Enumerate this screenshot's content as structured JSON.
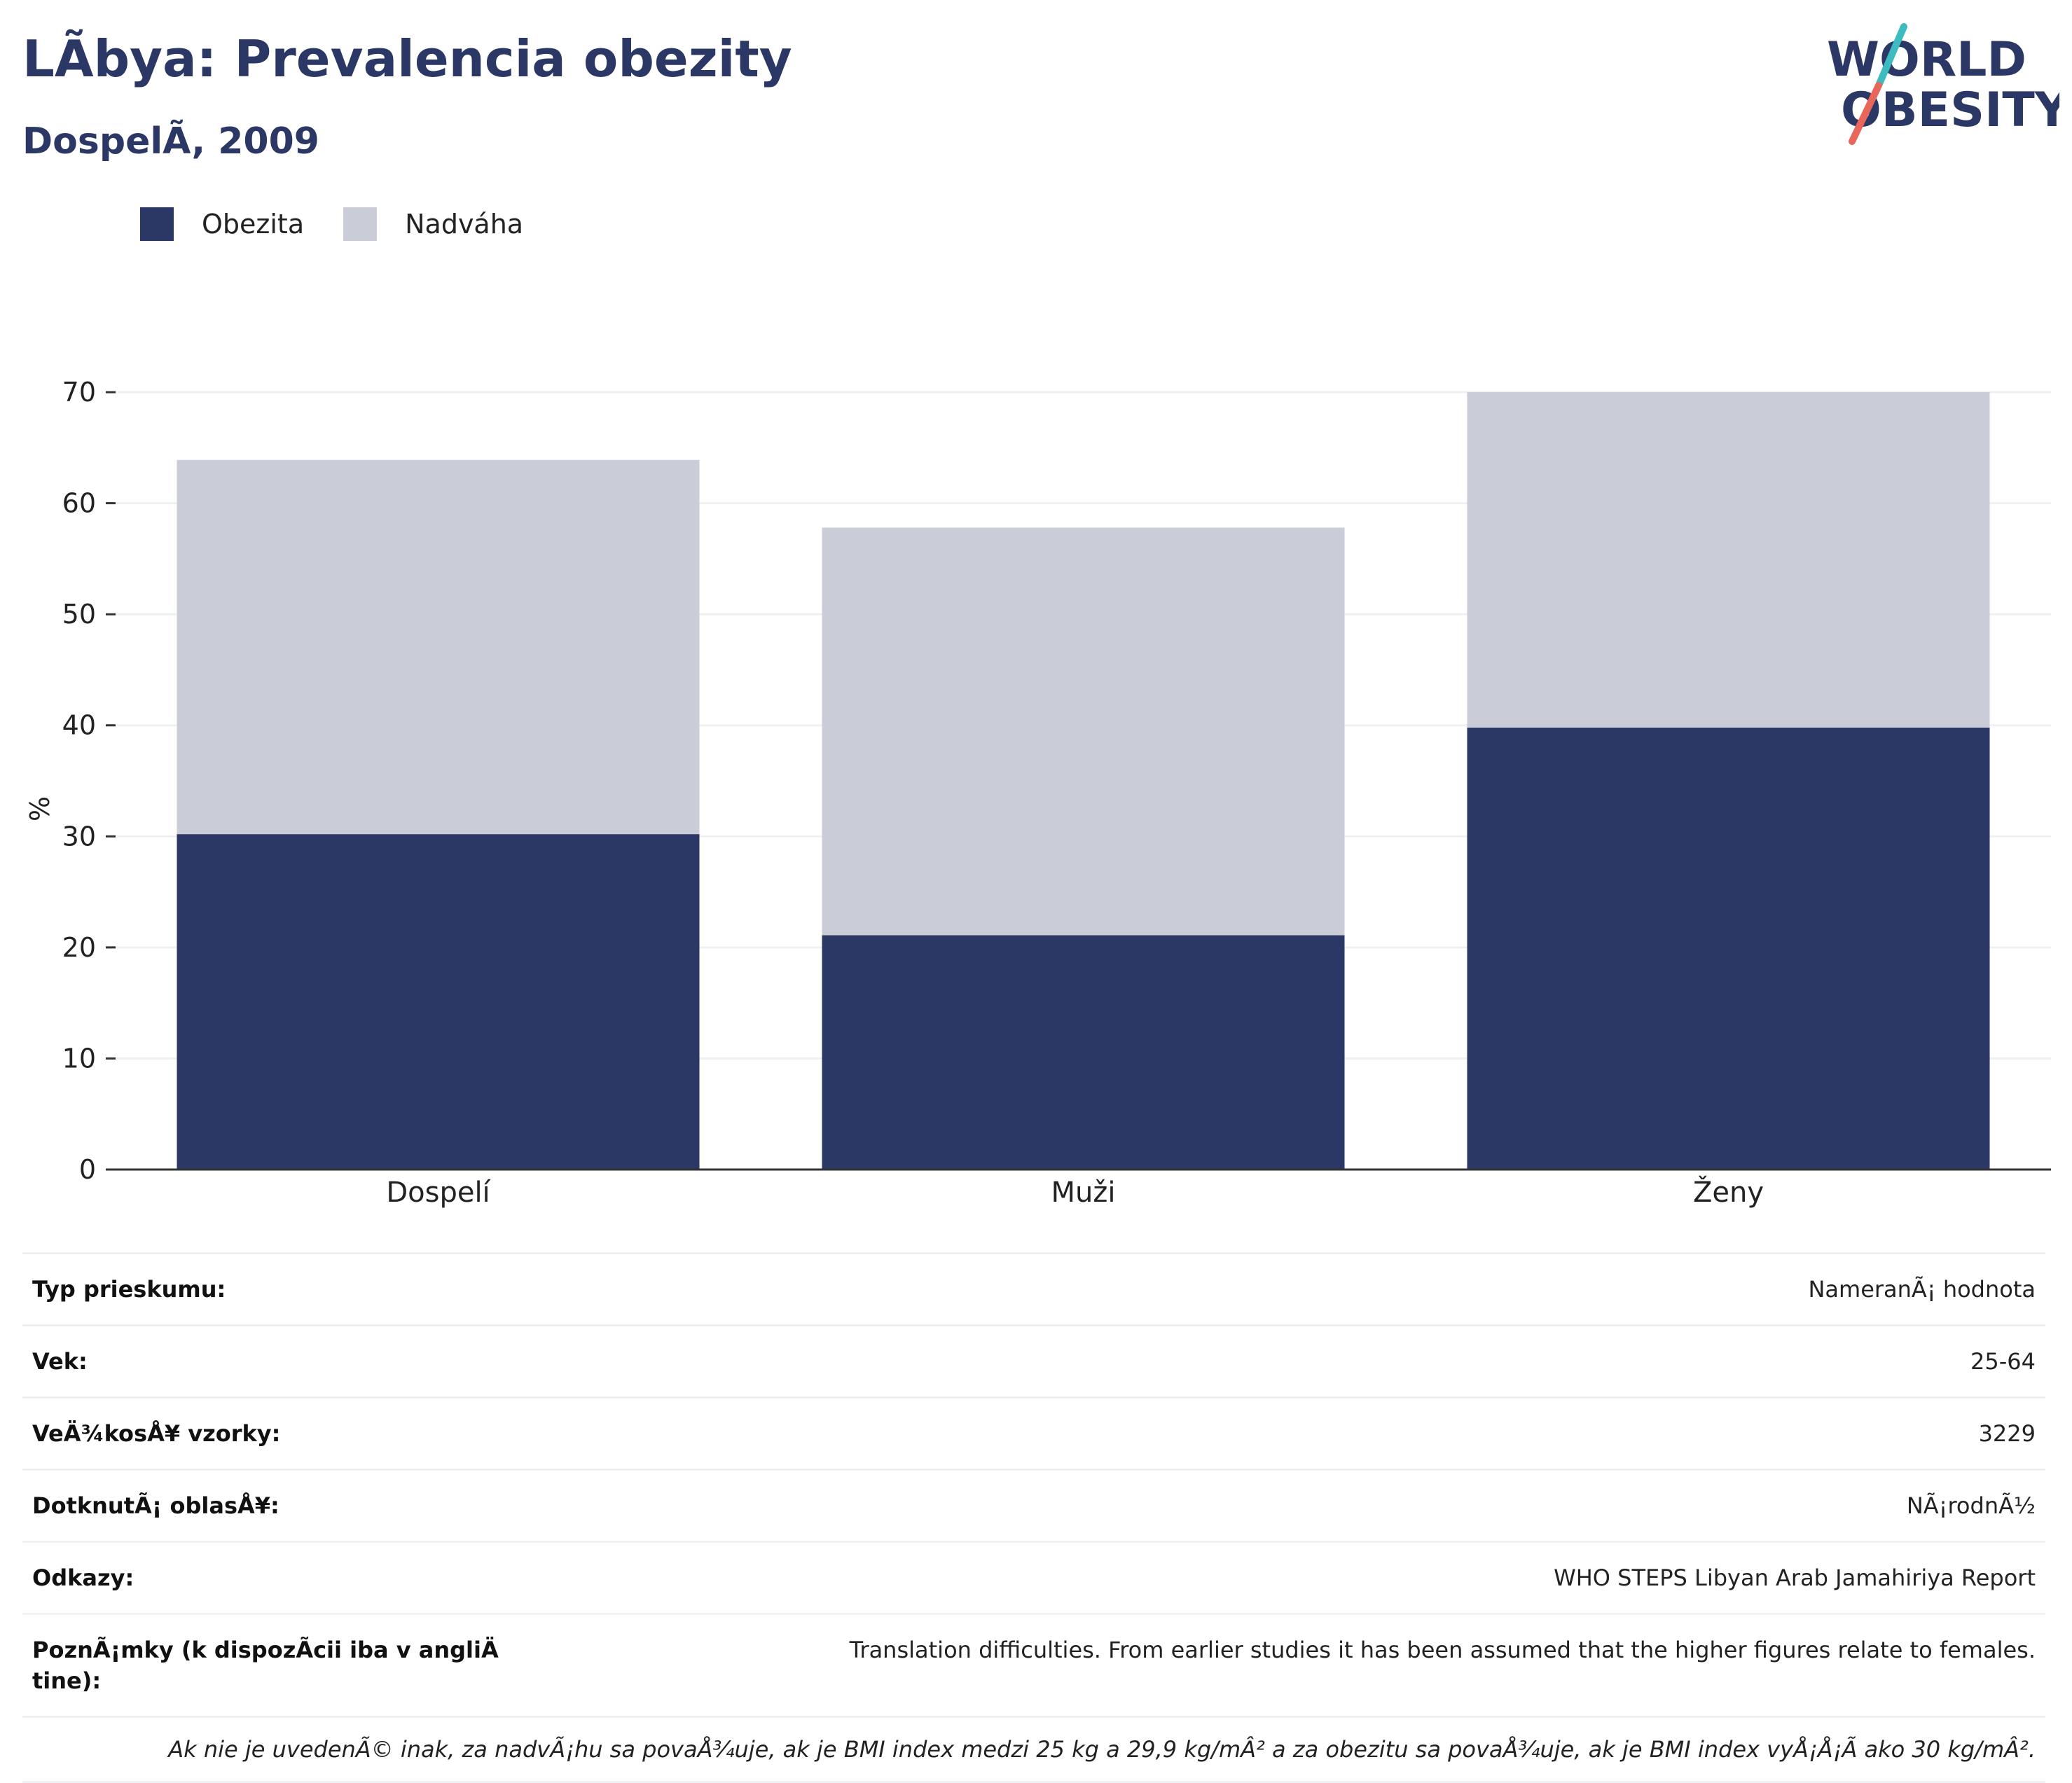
{
  "header": {
    "title": "LÃbya: Prevalencia obezity",
    "subtitle": "DospelÃ, 2009"
  },
  "logo": {
    "line1": "WORLD",
    "line2": "OBESITY"
  },
  "colors": {
    "obesity": "#2b3764",
    "overweight": "#cacdd8",
    "accent_teal": "#3cbcc0",
    "accent_coral": "#e8675a",
    "gridline": "#eef0f4"
  },
  "chart_data": {
    "type": "bar",
    "stacked": true,
    "categories": [
      "Dospelí",
      "Muži",
      "Ženy"
    ],
    "series": [
      {
        "name": "Obezita",
        "values": [
          30.2,
          21.1,
          39.8
        ]
      },
      {
        "name": "Nadváha",
        "values": [
          33.7,
          36.7,
          30.2
        ]
      }
    ],
    "ylabel": "%",
    "ylim": [
      0,
      70
    ],
    "yticks": [
      0,
      10,
      20,
      30,
      40,
      50,
      60,
      70
    ],
    "grid": true,
    "legend": "top-left"
  },
  "details": [
    {
      "label": "Typ prieskumu:",
      "value": "NameranÃ¡ hodnota"
    },
    {
      "label": "Vek:",
      "value": "25-64"
    },
    {
      "label": "VeÄ¾kosÅ¥ vzorky:",
      "value": "3229"
    },
    {
      "label": "DotknutÃ¡ oblasÅ¥:",
      "value": "NÃ¡rodnÃ½"
    },
    {
      "label": "Odkazy:",
      "value": "WHO STEPS Libyan Arab Jamahiriya Report"
    },
    {
      "label": "PoznÃ¡mky (k dispozÃcii iba v angliÄ tine):",
      "value": "Translation difficulties. From earlier studies it has been assumed that the higher figures relate to females."
    }
  ],
  "footnote": "Ak nie je uvedenÃ© inak, za nadvÃ¡hu sa povaÅ¾uje, ak je BMI index medzi 25 kg a 29,9 kg/mÂ² a za obezitu sa povaÅ¾uje, ak je BMI index vyÅ¡Å¡Ã ako 30 kg/mÂ²."
}
